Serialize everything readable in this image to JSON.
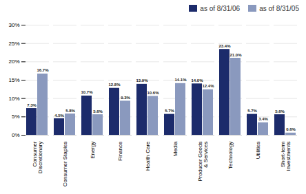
{
  "chart_data": {
    "type": "bar",
    "categories": [
      "Consumer\nDiscretionary",
      "Consumer Staples",
      "Energy",
      "Finance",
      "Health Care",
      "Media",
      "Producer Goods\n& Services",
      "Technology",
      "Utilities",
      "Short-term\nInvestments"
    ],
    "series": [
      {
        "name": "as of 8/31/06",
        "color": "#1c2b6b",
        "values": [
          7.3,
          4.5,
          10.7,
          12.8,
          13.9,
          5.7,
          14.0,
          23.4,
          5.7,
          5.6
        ],
        "value_labels": [
          "7.3%",
          "4.5%",
          "10.7%",
          "12.8%",
          "13.9%",
          "5.7%",
          "14.0%",
          "23.4%",
          "5.7%",
          "5.6%"
        ]
      },
      {
        "name": "as of 8/31/05",
        "color": "#8a99be",
        "values": [
          16.7,
          5.8,
          5.6,
          9.3,
          10.6,
          14.1,
          12.4,
          21.0,
          3.4,
          0.6
        ],
        "value_labels": [
          "16.7%",
          "5.8%",
          "5.6%",
          "9.3%",
          "10.6%",
          "14.1%",
          "12.4%",
          "21.0%",
          "3.4%",
          "0.6%"
        ]
      }
    ],
    "ylim": [
      0,
      30
    ],
    "yticks": [
      {
        "value": 0,
        "label": "0%"
      },
      {
        "value": 5,
        "label": "5%"
      },
      {
        "value": 10,
        "label": "10%"
      },
      {
        "value": 15,
        "label": "15%"
      },
      {
        "value": 20,
        "label": "20%"
      },
      {
        "value": 25,
        "label": "25%"
      },
      {
        "value": 30,
        "label": "30%"
      }
    ],
    "grid": true,
    "legend": "upper right",
    "data_labels": true
  }
}
